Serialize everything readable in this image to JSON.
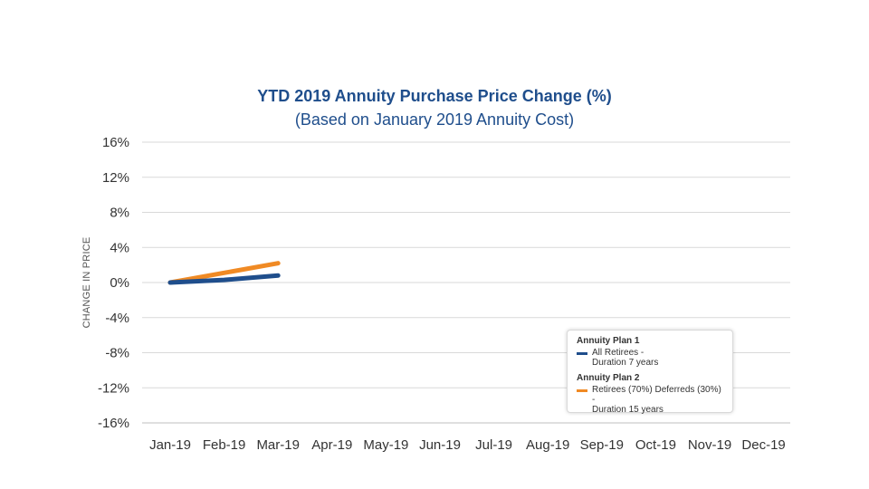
{
  "chart_data": {
    "type": "line",
    "title": "YTD 2019 Annuity Purchase Price Change (%)",
    "subtitle": "(Based on January 2019 Annuity Cost)",
    "xlabel": "",
    "ylabel": "CHANGE IN PRICE",
    "categories": [
      "Jan-19",
      "Feb-19",
      "Mar-19",
      "Apr-19",
      "May-19",
      "Jun-19",
      "Jul-19",
      "Aug-19",
      "Sep-19",
      "Oct-19",
      "Nov-19",
      "Dec-19"
    ],
    "y_ticks": [
      "16%",
      "12%",
      "8%",
      "4%",
      "0%",
      "-4%",
      "-8%",
      "-12%",
      "-16%"
    ],
    "y_tick_values": [
      16,
      12,
      8,
      4,
      0,
      -4,
      -8,
      -12,
      -16
    ],
    "ylim": [
      -16,
      16
    ],
    "grid": true,
    "legend_position": "bottom-right",
    "series": [
      {
        "name": "Annuity Plan 1",
        "description": "All Retirees -\nDuration 7 years",
        "color": "#1f4e8c",
        "values": [
          0,
          0.3,
          0.8,
          null,
          null,
          null,
          null,
          null,
          null,
          null,
          null,
          null
        ]
      },
      {
        "name": "Annuity Plan 2",
        "description": "Retirees (70%) Deferreds (30%) -\nDuration 15 years",
        "color": "#f08a24",
        "values": [
          0,
          1.1,
          2.2,
          null,
          null,
          null,
          null,
          null,
          null,
          null,
          null,
          null
        ]
      }
    ]
  }
}
